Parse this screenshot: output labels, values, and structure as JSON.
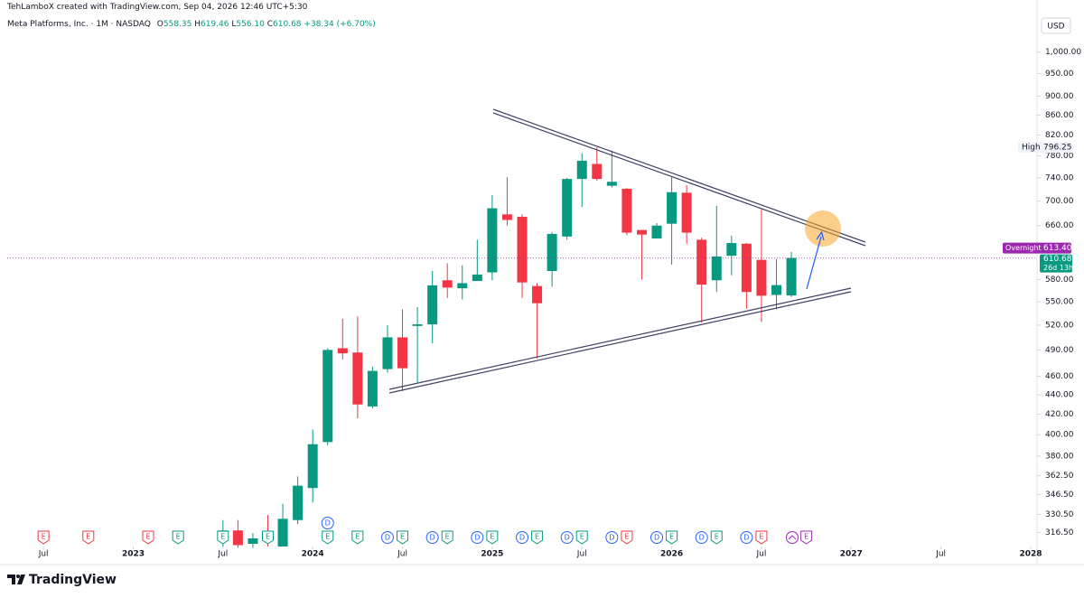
{
  "chart_data": {
    "type": "candlestick",
    "credit": "TehLamboX created with TradingView.com, Sep 04, 2026 12:46 UTC+5:30",
    "title": "Meta Platforms, Inc. · 1M · NASDAQ",
    "ohlc_letters": [
      "O",
      "H",
      "L",
      "C"
    ],
    "last_labels": {
      "open": "558.35",
      "high": "619.46",
      "low": "556.10",
      "close": "610.68"
    },
    "change": "+38.34 (+6.70%)",
    "currency": "USD",
    "high_label": "High",
    "high_value": 796.25,
    "overnight_label": "Overnight",
    "overnight_value": "613.40",
    "countdown": "26d 13h",
    "brand": "TradingView",
    "up_color": "#089981",
    "down_color": "#f23645",
    "log_scale": true,
    "x": [
      "2023-07",
      "2023-08",
      "2023-09",
      "2023-10",
      "2023-11",
      "2023-12",
      "2024-01",
      "2024-02",
      "2024-03",
      "2024-04",
      "2024-05",
      "2024-06",
      "2024-07",
      "2024-08",
      "2024-09",
      "2024-10",
      "2024-11",
      "2024-12",
      "2025-01",
      "2025-02",
      "2025-03",
      "2025-04",
      "2025-05",
      "2025-06",
      "2025-07",
      "2025-08",
      "2025-09",
      "2025-10",
      "2025-11",
      "2025-12",
      "2026-01",
      "2026-02",
      "2026-03",
      "2026-04",
      "2026-05",
      "2026-06",
      "2026-07",
      "2026-08",
      "2026-09"
    ],
    "open": [
      310,
      318,
      308,
      316,
      306,
      326,
      352,
      393,
      492,
      487,
      428,
      468,
      505,
      519,
      521,
      579,
      568,
      578,
      590,
      678,
      674,
      571,
      592,
      643,
      738,
      765,
      726,
      721,
      653,
      640,
      663,
      714,
      638,
      579,
      614,
      632,
      608,
      559,
      558.35
    ],
    "high": [
      326,
      326,
      316,
      330,
      339,
      362,
      405,
      492,
      528,
      531,
      471,
      520,
      540,
      543,
      592,
      603,
      600,
      638,
      710,
      741,
      678,
      575,
      650,
      740,
      785,
      796.25,
      790,
      722,
      653,
      664,
      741,
      727,
      641,
      692,
      644,
      633,
      686,
      609,
      619.46
    ],
    "low": [
      306,
      305,
      305,
      306,
      306,
      323,
      340,
      390,
      479,
      416,
      426,
      464,
      444,
      453,
      498,
      555,
      553,
      578,
      579,
      660,
      555,
      480,
      570,
      638,
      690,
      735,
      723,
      645,
      580,
      640,
      601,
      632,
      523,
      563,
      586,
      541,
      524,
      540,
      556.1
    ],
    "close": [
      318,
      307,
      312,
      312,
      327,
      354,
      391,
      490,
      486,
      430,
      466,
      505,
      469,
      521,
      572,
      569,
      575,
      587,
      688,
      669,
      576,
      548,
      647,
      738,
      771,
      738,
      733,
      649,
      646,
      660,
      715,
      649,
      573,
      613,
      633,
      563,
      558,
      572.34,
      610.68
    ],
    "ylim": [
      306,
      1085
    ],
    "yticks": [
      {
        "value": 1000,
        "label": "1,000.00"
      },
      {
        "value": 950,
        "label": "950.00"
      },
      {
        "value": 900,
        "label": "900.00"
      },
      {
        "value": 860,
        "label": "860.00"
      },
      {
        "value": 820,
        "label": "820.00"
      },
      {
        "value": 780,
        "label": "780.00"
      },
      {
        "value": 740,
        "label": "740.00"
      },
      {
        "value": 700,
        "label": "700.00"
      },
      {
        "value": 660,
        "label": "660.00"
      },
      {
        "value": 580,
        "label": "580.00"
      },
      {
        "value": 550,
        "label": "550.00"
      },
      {
        "value": 520,
        "label": "520.00"
      },
      {
        "value": 490,
        "label": "490.00"
      },
      {
        "value": 460,
        "label": "460.00"
      },
      {
        "value": 440,
        "label": "440.00"
      },
      {
        "value": 420,
        "label": "420.00"
      },
      {
        "value": 400,
        "label": "400.00"
      },
      {
        "value": 380,
        "label": "380.00"
      },
      {
        "value": 362.5,
        "label": "362.50"
      },
      {
        "value": 346.5,
        "label": "346.50"
      },
      {
        "value": 330.5,
        "label": "330.50"
      },
      {
        "value": 316.5,
        "label": "316.50"
      }
    ],
    "xlim": [
      "2022-05",
      "2028-01"
    ],
    "xticks": [
      {
        "value": "2022-07",
        "label": "Jul"
      },
      {
        "value": "2023-01",
        "label": "2023"
      },
      {
        "value": "2023-07",
        "label": "Jul"
      },
      {
        "value": "2024-01",
        "label": "2024"
      },
      {
        "value": "2024-07",
        "label": "Jul"
      },
      {
        "value": "2025-01",
        "label": "2025"
      },
      {
        "value": "2025-07",
        "label": "Jul"
      },
      {
        "value": "2026-01",
        "label": "2026"
      },
      {
        "value": "2026-07",
        "label": "Jul"
      },
      {
        "value": "2027-01",
        "label": "2027"
      },
      {
        "value": "2027-07",
        "label": "Jul"
      },
      {
        "value": "2028-01",
        "label": "2028"
      }
    ],
    "events": [
      {
        "date": "2022-07",
        "label": "E",
        "color": "#f23645"
      },
      {
        "date": "2022-10",
        "label": "E",
        "color": "#f23645"
      },
      {
        "date": "2023-02",
        "label": "E",
        "color": "#f23645"
      },
      {
        "date": "2023-04",
        "label": "E",
        "color": "#089981"
      },
      {
        "date": "2023-07",
        "label": "E",
        "color": "#089981"
      },
      {
        "date": "2023-10",
        "label": "E",
        "color": "#089981"
      },
      {
        "date": "2024-02",
        "label": "E",
        "color": "#089981"
      },
      {
        "date": "2024-02",
        "label": "D",
        "color": "#2962ff"
      },
      {
        "date": "2024-04",
        "label": "E",
        "color": "#089981"
      },
      {
        "date": "2024-06",
        "label": "D",
        "color": "#2962ff"
      },
      {
        "date": "2024-07",
        "label": "E",
        "color": "#089981"
      },
      {
        "date": "2024-09",
        "label": "D",
        "color": "#2962ff"
      },
      {
        "date": "2024-10",
        "label": "E",
        "color": "#089981"
      },
      {
        "date": "2024-12",
        "label": "D",
        "color": "#2962ff"
      },
      {
        "date": "2025-01",
        "label": "E",
        "color": "#089981"
      },
      {
        "date": "2025-03",
        "label": "D",
        "color": "#2962ff"
      },
      {
        "date": "2025-04",
        "label": "E",
        "color": "#089981"
      },
      {
        "date": "2025-06",
        "label": "D",
        "color": "#2962ff"
      },
      {
        "date": "2025-07",
        "label": "E",
        "color": "#089981"
      },
      {
        "date": "2025-09",
        "label": "D",
        "color": "#2962ff"
      },
      {
        "date": "2025-10",
        "label": "E",
        "color": "#f23645"
      },
      {
        "date": "2025-12",
        "label": "D",
        "color": "#2962ff"
      },
      {
        "date": "2026-01",
        "label": "E",
        "color": "#089981"
      },
      {
        "date": "2026-03",
        "label": "D",
        "color": "#2962ff"
      },
      {
        "date": "2026-04",
        "label": "E",
        "color": "#089981"
      },
      {
        "date": "2026-06",
        "label": "D",
        "color": "#2962ff"
      },
      {
        "date": "2026-07",
        "label": "E",
        "color": "#f23645"
      },
      {
        "date": "2026-10",
        "label": "E",
        "color": "#9c27b0"
      }
    ]
  }
}
